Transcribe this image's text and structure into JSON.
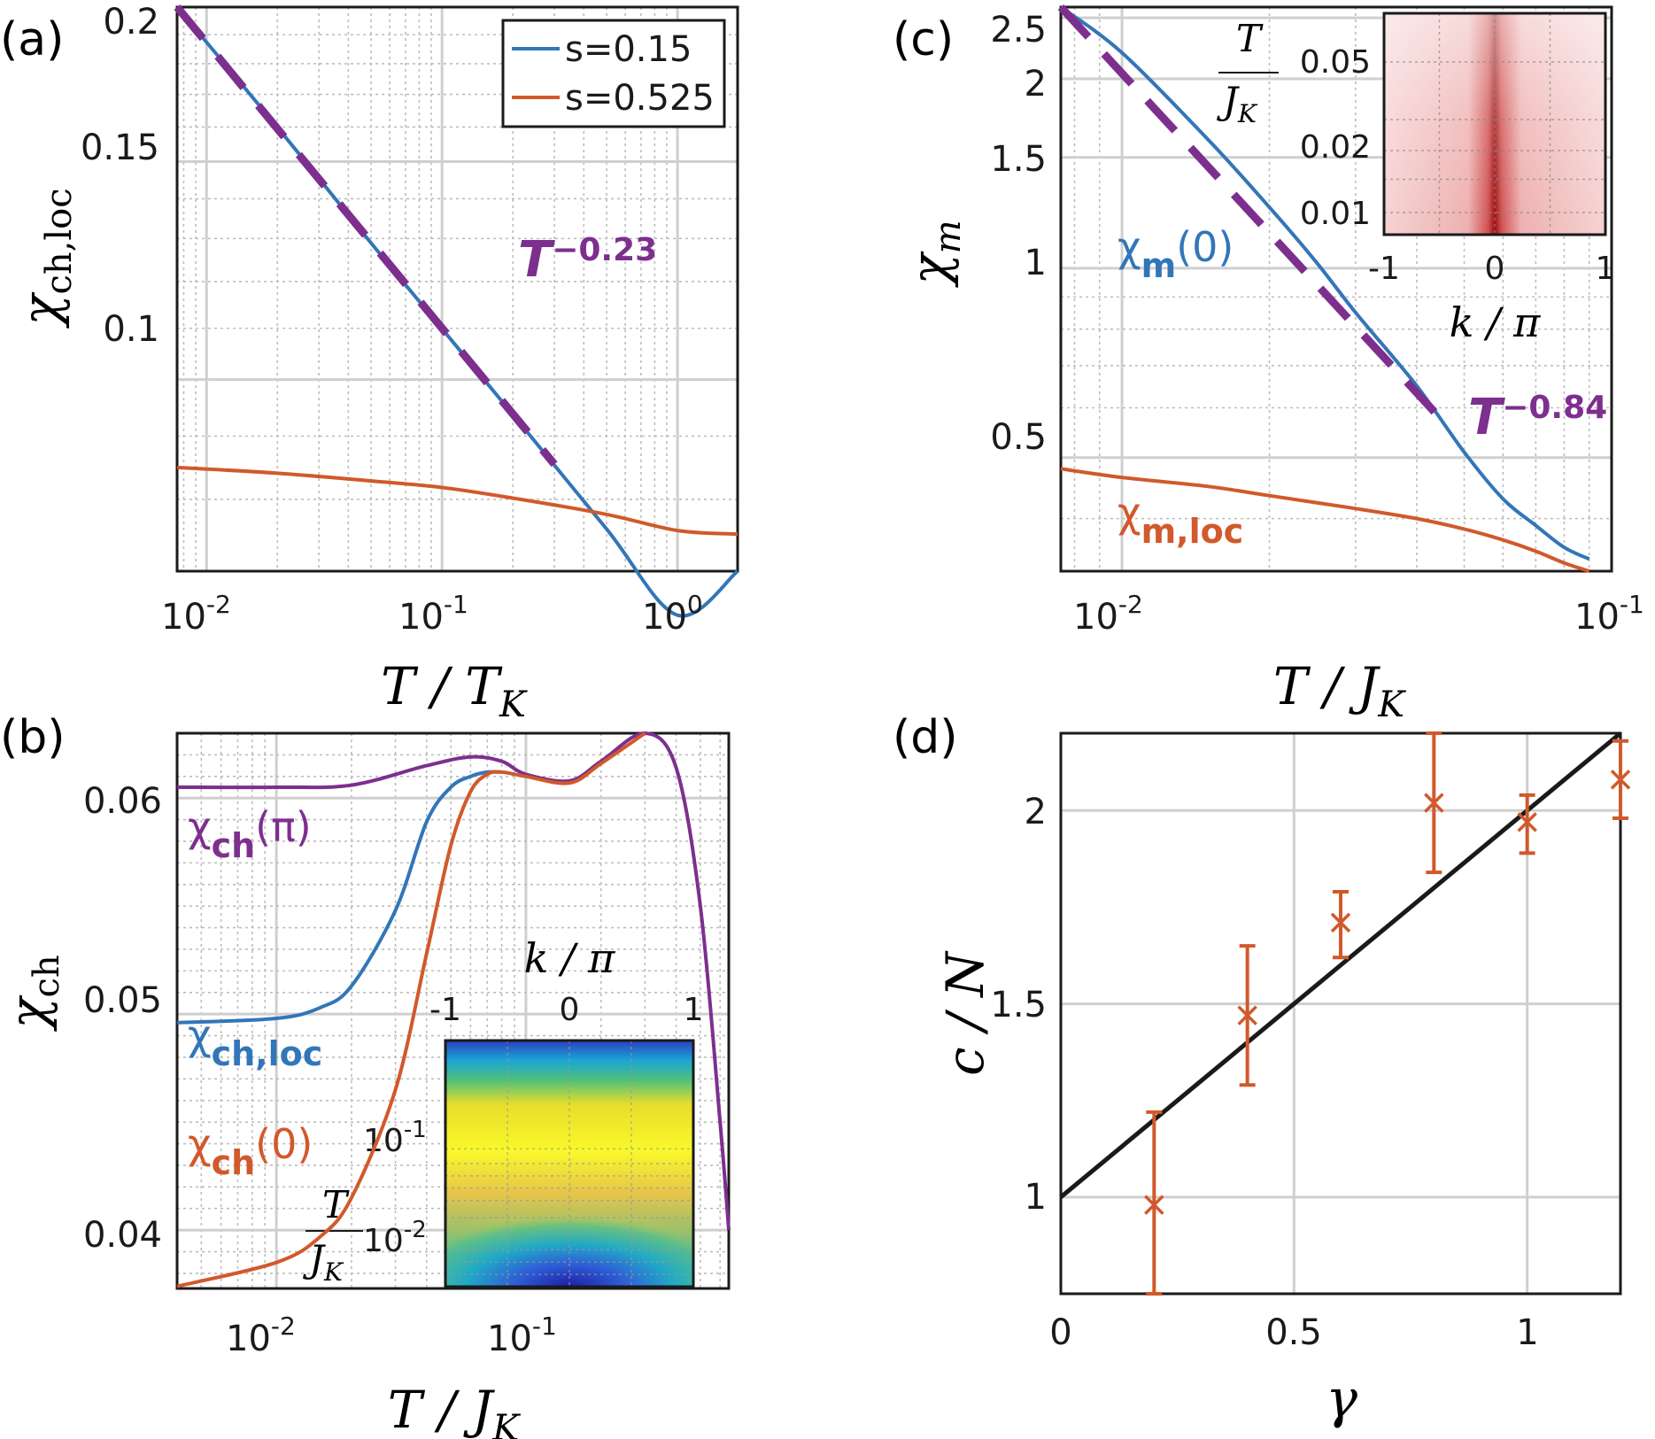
{
  "panels": {
    "a": {
      "label": "(a)",
      "xlabel_main": "T / T",
      "xlabel_sub": "K",
      "ylabel_main": "χ",
      "ylabel_sub": "ch,loc",
      "xticks": [
        {
          "base": "10",
          "exp": "-2"
        },
        {
          "base": "10",
          "exp": "-1"
        },
        {
          "base": "10",
          "exp": "0"
        }
      ],
      "yticks": [
        "0.2",
        "0.15",
        "0.1"
      ],
      "annotation_base": "T",
      "annotation_exp": "−0.23",
      "legend": [
        "s=0.15",
        "s=0.525"
      ]
    },
    "b": {
      "label": "(b)",
      "xlabel_main": "T / J",
      "xlabel_sub": "K",
      "ylabel_main": "χ",
      "ylabel_sub": "ch",
      "xticks": [
        {
          "base": "10",
          "exp": "-2"
        },
        {
          "base": "10",
          "exp": "-1"
        }
      ],
      "yticks": [
        "0.06",
        "0.05",
        "0.04"
      ],
      "curve_labels": {
        "pi": {
          "chi": "χ",
          "sub": "ch",
          "arg": "(π)"
        },
        "loc": {
          "chi": "χ",
          "sub": "ch,loc"
        },
        "zero": {
          "chi": "χ",
          "sub": "ch",
          "arg": "(0)"
        }
      },
      "inset": {
        "xlabel": "k / π",
        "xticks": [
          "-1",
          "0",
          "1"
        ],
        "ylabel_num": "T",
        "ylabel_den": "J",
        "ylabel_den_sub": "K",
        "yticks": [
          {
            "base": "10",
            "exp": "-1"
          },
          {
            "base": "10",
            "exp": "-2"
          }
        ]
      }
    },
    "c": {
      "label": "(c)",
      "xlabel_main": "T / J",
      "xlabel_sub": "K",
      "ylabel_main": "χ",
      "ylabel_sub": "m",
      "xticks": [
        {
          "base": "10",
          "exp": "-2"
        },
        {
          "base": "10",
          "exp": "-1"
        }
      ],
      "yticks": [
        "2.5",
        "2",
        "1.5",
        "1",
        "0.5"
      ],
      "curve_labels": {
        "zero": {
          "chi": "χ",
          "sub": "m",
          "arg": "(0)"
        },
        "loc": {
          "chi": "χ",
          "sub": "m,loc"
        }
      },
      "annotation_base": "T",
      "annotation_exp": "−0.84",
      "inset": {
        "xlabel": "k / π",
        "xticks": [
          "-1",
          "0",
          "1"
        ],
        "ylabel_num": "T",
        "ylabel_den": "J",
        "ylabel_den_sub": "K",
        "yticks": [
          "0.05",
          "0.02",
          "0.01"
        ]
      }
    },
    "d": {
      "label": "(d)",
      "xlabel": "γ",
      "ylabel": "c / N",
      "xticks": [
        "0",
        "0.5",
        "1"
      ],
      "yticks": [
        "1",
        "1.5",
        "2"
      ]
    }
  },
  "colors": {
    "blue": "#3276b8",
    "orange": "#d1592b",
    "purple": "#7d2f8e",
    "grid": "#c8c8c8",
    "axis": "#1a1a1a"
  },
  "chart_data": [
    {
      "panel": "a",
      "type": "line",
      "xscale": "log",
      "yscale": "log",
      "xlim": [
        0.0075,
        1.8
      ],
      "ylim": [
        0.07,
        0.2
      ],
      "xlabel": "T/T_K",
      "ylabel": "χ_ch,loc",
      "legend_position": "top-right",
      "series": [
        {
          "name": "s=0.15",
          "color": "blue",
          "x": [
            0.0075,
            0.02,
            0.05,
            0.1,
            0.2,
            0.5,
            1.0,
            1.8
          ],
          "y": [
            0.2,
            0.1599,
            0.1289,
            0.1099,
            0.0937,
            0.0757,
            0.0645,
            0.07
          ]
        },
        {
          "name": "s=0.525",
          "color": "orange",
          "x": [
            0.0075,
            0.02,
            0.05,
            0.1,
            0.2,
            0.5,
            1.0,
            1.8
          ],
          "y": [
            0.0849,
            0.084,
            0.0828,
            0.0818,
            0.0802,
            0.0778,
            0.0755,
            0.075
          ]
        },
        {
          "name": "T^-0.23",
          "color": "purple",
          "dashed": true,
          "x": [
            0.0075,
            0.3
          ],
          "y": [
            0.2,
            0.0854
          ]
        }
      ]
    },
    {
      "panel": "b",
      "type": "line",
      "xscale": "log",
      "yscale": "linear",
      "xlim": [
        0.004,
        0.65
      ],
      "ylim": [
        0.0373,
        0.063
      ],
      "xlabel": "T/J_K",
      "ylabel": "χ_ch",
      "series": [
        {
          "name": "χch(π)",
          "color": "purple",
          "x": [
            0.004,
            0.01,
            0.02,
            0.04,
            0.06,
            0.08,
            0.1,
            0.15,
            0.2,
            0.3,
            0.4,
            0.5,
            0.6,
            0.65
          ],
          "y": [
            0.0605,
            0.0605,
            0.0606,
            0.0615,
            0.0619,
            0.0617,
            0.0611,
            0.0608,
            0.0617,
            0.063,
            0.0614,
            0.055,
            0.045,
            0.04
          ]
        },
        {
          "name": "χch,loc",
          "color": "blue",
          "x": [
            0.004,
            0.01,
            0.015,
            0.02,
            0.03,
            0.04,
            0.05,
            0.06,
            0.07,
            0.08
          ],
          "y": [
            0.0496,
            0.0498,
            0.0503,
            0.0513,
            0.0548,
            0.0589,
            0.0605,
            0.061,
            0.0612,
            0.0612
          ]
        },
        {
          "name": "χch(0)",
          "color": "orange",
          "x": [
            0.004,
            0.01,
            0.015,
            0.02,
            0.03,
            0.04,
            0.05,
            0.06,
            0.07,
            0.08,
            0.1,
            0.15,
            0.2,
            0.3
          ],
          "y": [
            0.0374,
            0.0385,
            0.0397,
            0.0415,
            0.0465,
            0.0528,
            0.0578,
            0.0603,
            0.0611,
            0.0612,
            0.061,
            0.0607,
            0.0616,
            0.063
          ]
        }
      ],
      "inset": {
        "type": "heatmap",
        "colormap": "parula",
        "xlim": [
          -1,
          1
        ]
      }
    },
    {
      "panel": "c",
      "type": "line",
      "xscale": "log",
      "yscale": "log",
      "xlim": [
        0.0075,
        0.1
      ],
      "ylim": [
        0.33,
        2.6
      ],
      "xlabel": "T/J_K",
      "ylabel": "χ_m",
      "series": [
        {
          "name": "χm(0)",
          "color": "blue",
          "x": [
            0.0075,
            0.01,
            0.015,
            0.02,
            0.025,
            0.03,
            0.04,
            0.05,
            0.06,
            0.07,
            0.08,
            0.09
          ],
          "y": [
            2.6,
            2.2,
            1.6,
            1.25,
            1.02,
            0.85,
            0.65,
            0.51,
            0.43,
            0.39,
            0.36,
            0.345
          ]
        },
        {
          "name": "χm,loc",
          "color": "orange",
          "x": [
            0.0075,
            0.01,
            0.015,
            0.02,
            0.03,
            0.04,
            0.05,
            0.06,
            0.07,
            0.08,
            0.09
          ],
          "y": [
            0.48,
            0.465,
            0.45,
            0.435,
            0.415,
            0.4,
            0.385,
            0.37,
            0.355,
            0.34,
            0.33
          ]
        },
        {
          "name": "T^-0.84",
          "color": "purple",
          "dashed": true,
          "x": [
            0.0075,
            0.045
          ],
          "y": [
            2.6,
            0.574
          ]
        }
      ],
      "inset": {
        "type": "heatmap",
        "colormap": "reds",
        "xlim": [
          -1,
          1
        ]
      }
    },
    {
      "panel": "d",
      "type": "scatter",
      "xlim": [
        0,
        1.2
      ],
      "ylim": [
        0.75,
        2.2
      ],
      "xlabel": "γ",
      "ylabel": "c/N",
      "series": [
        {
          "name": "fit",
          "color": "axis",
          "kind": "line",
          "x": [
            0,
            1.2
          ],
          "y": [
            1.0,
            2.2
          ]
        },
        {
          "name": "data",
          "color": "orange",
          "kind": "errorbar",
          "x": [
            0.2,
            0.4,
            0.6,
            0.8,
            1.0,
            1.2
          ],
          "y": [
            0.98,
            1.47,
            1.71,
            2.02,
            1.97,
            2.08
          ],
          "yerr_low": [
            0.23,
            0.18,
            0.09,
            0.18,
            0.08,
            0.1
          ],
          "yerr_high": [
            0.24,
            0.18,
            0.08,
            0.18,
            0.07,
            0.1
          ]
        }
      ]
    }
  ]
}
